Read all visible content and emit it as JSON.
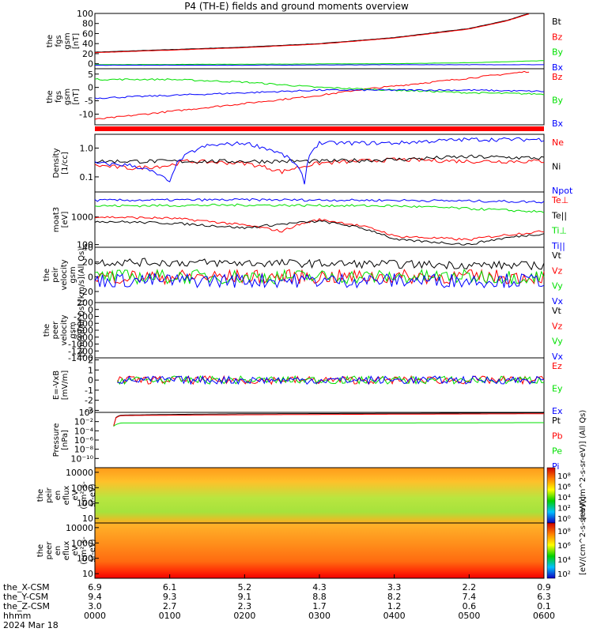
{
  "title": "P4 (TH-E) fields and ground moments overview",
  "date": "2024 Mar 18",
  "colors": {
    "black": "#000000",
    "red": "#ff0000",
    "green": "#00e000",
    "blue": "#0000ff"
  },
  "time_axis": {
    "ticks": [
      "0000",
      "0100",
      "0200",
      "0300",
      "0400",
      "0500",
      "0600"
    ],
    "row_labels": [
      "the_X-CSM",
      "the_Y-CSM",
      "the_Z-CSM",
      "hhmm"
    ],
    "rows": [
      [
        "6.9",
        "6.1",
        "5.2",
        "4.3",
        "3.3",
        "2.2",
        "0.9"
      ],
      [
        "9.4",
        "9.3",
        "9.1",
        "8.8",
        "8.2",
        "7.4",
        "6.3"
      ],
      [
        "3.0",
        "2.7",
        "2.3",
        "1.7",
        "1.2",
        "0.6",
        "0.1"
      ]
    ]
  },
  "chart_data": [
    {
      "type": "line",
      "id": "fgs_gsm",
      "ylabel": [
        "the",
        "fgs",
        "gsm",
        "[nT]"
      ],
      "ylim": [
        -10,
        100
      ],
      "yticks": [
        "100",
        "80",
        "60",
        "40",
        "20",
        "0"
      ],
      "series": [
        {
          "name": "Bt",
          "color": "black",
          "x": [
            0,
            1,
            2,
            3,
            4,
            5,
            5.5,
            5.8
          ],
          "values": [
            23,
            28,
            33,
            40,
            52,
            70,
            86,
            100
          ]
        },
        {
          "name": "Bz",
          "color": "red",
          "x": [
            0,
            1,
            2,
            3,
            4,
            5,
            5.5,
            5.8
          ],
          "values": [
            22,
            27,
            32,
            39,
            51,
            69,
            85,
            99
          ]
        },
        {
          "name": "By",
          "color": "green",
          "x": [
            0,
            2,
            4,
            5,
            6
          ],
          "values": [
            -2,
            -1,
            0,
            2,
            6
          ]
        },
        {
          "name": "Bx",
          "color": "blue",
          "x": [
            0,
            2,
            4,
            6
          ],
          "values": [
            -3,
            -3,
            -2,
            -2
          ]
        }
      ]
    },
    {
      "type": "line",
      "id": "fgs_gsm_detrend",
      "ylabel": [
        "the",
        "fgs",
        "gsm",
        "[nT]"
      ],
      "ylim": [
        -14,
        7
      ],
      "yticks": [
        "5",
        "0",
        "-5",
        "-10"
      ],
      "series": [
        {
          "name": "Bz",
          "color": "red",
          "x": [
            0,
            1,
            2,
            3,
            3.5,
            4,
            5,
            5.8
          ],
          "values": [
            -12,
            -9,
            -6,
            -3,
            -1,
            0.5,
            3.5,
            6
          ]
        },
        {
          "name": "By",
          "color": "green",
          "x": [
            0,
            1,
            2,
            3,
            4,
            5,
            6
          ],
          "values": [
            3,
            3,
            2,
            0,
            -1,
            -2,
            -2.5
          ]
        },
        {
          "name": "Bx",
          "color": "blue",
          "x": [
            0,
            1,
            2,
            3,
            4,
            5,
            6
          ],
          "values": [
            -4,
            -3,
            -2,
            -1,
            -1,
            -1,
            -1.5
          ]
        }
      ]
    },
    {
      "type": "line",
      "id": "density",
      "ylabel": [
        "Density",
        "[1/cc]"
      ],
      "scale": "log",
      "ylim": [
        0.03,
        3
      ],
      "yticks": [
        "1.0",
        "0.1"
      ],
      "series": [
        {
          "name": "Ne",
          "color": "red",
          "x": [
            0,
            0.5,
            1,
            1.2,
            2,
            2.5,
            3,
            4,
            5,
            6
          ],
          "values": [
            0.25,
            0.2,
            0.25,
            0.35,
            0.3,
            0.15,
            0.3,
            0.4,
            0.35,
            0.35
          ]
        },
        {
          "name": "Ni",
          "color": "black",
          "x": [
            0,
            1,
            2,
            3,
            4,
            5,
            6
          ],
          "values": [
            0.35,
            0.35,
            0.35,
            0.35,
            0.4,
            0.5,
            0.45
          ]
        },
        {
          "name": "Npot",
          "color": "blue",
          "x": [
            0,
            0.5,
            1,
            1.5,
            2,
            2.5,
            2.8,
            3,
            4,
            5,
            6
          ],
          "values": [
            0.3,
            0.25,
            0.06,
            1.2,
            1.5,
            0.6,
            0.05,
            1.5,
            1.5,
            2,
            2
          ]
        }
      ]
    },
    {
      "type": "line",
      "id": "temperature",
      "ylabel": [
        "moat3",
        "[eV]"
      ],
      "scale": "log",
      "ylim": [
        80,
        8000
      ],
      "yticks": [
        "1000",
        "100"
      ],
      "series": [
        {
          "name": "Te⊥",
          "color": "red",
          "x": [
            0,
            1,
            2,
            2.5,
            3,
            4,
            5,
            6
          ],
          "values": [
            1000,
            900,
            500,
            300,
            800,
            200,
            150,
            300
          ]
        },
        {
          "name": "Te||",
          "color": "black",
          "x": [
            0,
            1,
            2,
            3,
            4,
            5,
            6
          ],
          "values": [
            700,
            600,
            400,
            700,
            150,
            100,
            250
          ]
        },
        {
          "name": "Ti⊥",
          "color": "green",
          "x": [
            0,
            2,
            4,
            5,
            6
          ],
          "values": [
            2500,
            2700,
            2500,
            2000,
            1500
          ]
        },
        {
          "name": "Ti||",
          "color": "blue",
          "x": [
            0,
            2,
            4,
            5,
            6
          ],
          "values": [
            4000,
            4200,
            4000,
            3800,
            3500
          ]
        }
      ]
    },
    {
      "type": "line",
      "id": "peir_velocity",
      "ylabel": [
        "the",
        "peir",
        "velocity",
        "gsm",
        "[km/s](All Qs)"
      ],
      "ylim": [
        -35,
        40
      ],
      "yticks": [
        "40",
        "20",
        "0",
        "-20"
      ],
      "series": [
        {
          "name": "Vt",
          "color": "black",
          "x": [
            0,
            3,
            6
          ],
          "values": [
            20,
            18,
            15
          ]
        },
        {
          "name": "Vz",
          "color": "red",
          "x": [
            0,
            3,
            6
          ],
          "values": [
            0,
            0,
            0
          ]
        },
        {
          "name": "Vy",
          "color": "green",
          "x": [
            0,
            3,
            6
          ],
          "values": [
            0,
            0,
            0
          ]
        },
        {
          "name": "Vx",
          "color": "blue",
          "x": [
            0,
            3,
            6
          ],
          "values": [
            -5,
            -5,
            -5
          ]
        }
      ]
    },
    {
      "type": "line",
      "id": "peer_velocity",
      "ylabel": [
        "the",
        "peer",
        "velocity",
        "gsm",
        "[km/s](All Qs)"
      ],
      "ylim": [
        -1400,
        200
      ],
      "yticks": [
        "200",
        "0",
        "-200",
        "-400",
        "-600",
        "-800",
        "-1000",
        "-1200",
        "-1400"
      ],
      "series": [
        {
          "name": "Vt",
          "color": "black",
          "values": []
        },
        {
          "name": "Vz",
          "color": "red",
          "values": []
        },
        {
          "name": "Vy",
          "color": "green",
          "values": []
        },
        {
          "name": "Vx",
          "color": "blue",
          "values": []
        }
      ]
    },
    {
      "type": "line",
      "id": "efield",
      "ylabel": [
        "E=-VxB",
        "[mV/m]"
      ],
      "ylim": [
        -3.2,
        2.2
      ],
      "yticks": [
        "2",
        "1",
        "0",
        "-1",
        "-2",
        "-3"
      ],
      "series": [
        {
          "name": "Ez",
          "color": "red",
          "x": [
            0.3,
            6
          ],
          "values": [
            0,
            0
          ]
        },
        {
          "name": "Ey",
          "color": "green",
          "x": [
            0.3,
            6
          ],
          "values": [
            0,
            0
          ]
        },
        {
          "name": "Ex",
          "color": "blue",
          "x": [
            0.3,
            6
          ],
          "values": [
            0,
            0
          ]
        }
      ]
    },
    {
      "type": "line",
      "id": "pressure",
      "ylabel": [
        "Pressure",
        "[nPa]"
      ],
      "scale": "log",
      "ylim": [
        1e-12,
        1
      ],
      "yticks": [
        "10⁰",
        "10⁻²",
        "10⁻⁴",
        "10⁻⁶",
        "10⁻⁸",
        "10⁻¹⁰"
      ],
      "series": [
        {
          "name": "Pt",
          "color": "black",
          "x": [
            0.25,
            0.35,
            2,
            4,
            6
          ],
          "values": [
            0.001,
            0.25,
            0.5,
            0.6,
            0.8
          ]
        },
        {
          "name": "Pb",
          "color": "red",
          "x": [
            0.25,
            0.35,
            2,
            4,
            6
          ],
          "values": [
            0.001,
            0.2,
            0.3,
            0.4,
            0.5
          ]
        },
        {
          "name": "Pe",
          "color": "green",
          "x": [
            0.25,
            0.35,
            2,
            4,
            6
          ],
          "values": [
            0.001,
            0.005,
            0.005,
            0.005,
            0.006
          ]
        },
        {
          "name": "Pi",
          "color": "blue",
          "values": []
        }
      ]
    },
    {
      "type": "heatmap",
      "id": "peir_spec",
      "ylabel": [
        "the",
        "peir",
        "en",
        "eflux",
        "eV",
        "(cm²-s-",
        "sr-eV)"
      ],
      "scale": "log",
      "ylim": [
        5,
        20000
      ],
      "yticks": [
        "10000",
        "1000",
        "100",
        "10"
      ],
      "colorbar": {
        "label": "[eV/(cm^2-s-sr-eV)] (All Qs)",
        "ticks": [
          "10⁸",
          "10⁶",
          "10⁴",
          "10²",
          "10⁰"
        ]
      }
    },
    {
      "type": "heatmap",
      "id": "peer_spec",
      "ylabel": [
        "the",
        "peer",
        "en",
        "eflux",
        "eV",
        "(cm²-s-",
        "sr-eV)"
      ],
      "scale": "log",
      "ylim": [
        5,
        20000
      ],
      "yticks": [
        "10000",
        "1000",
        "100",
        "10"
      ],
      "colorbar": {
        "label": "[eV/(cm^2-s-sr-eV)]",
        "ticks": [
          "10⁸",
          "10⁶",
          "10⁴",
          "10²"
        ]
      }
    }
  ]
}
